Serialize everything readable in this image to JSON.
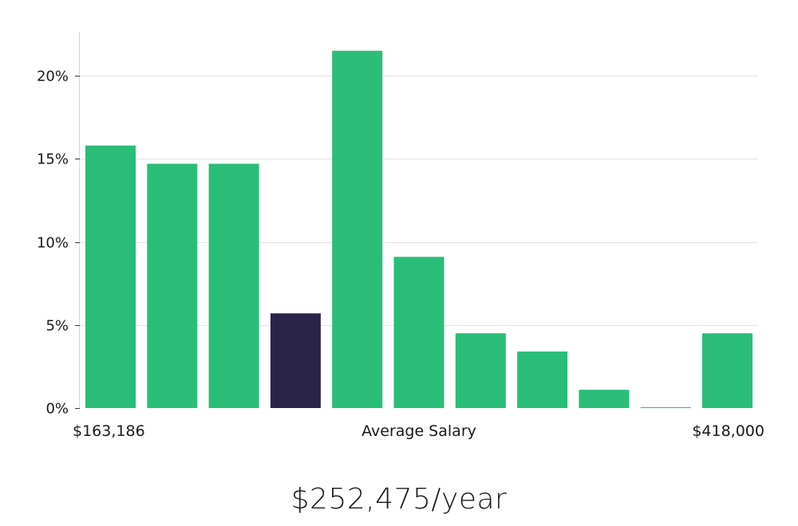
{
  "chart_data": {
    "type": "bar",
    "title": "",
    "xlabel": "Average Salary",
    "ylabel": "",
    "ylim": [
      0,
      22.5
    ],
    "y_ticks": [
      0,
      5,
      10,
      15,
      20
    ],
    "y_tick_labels": [
      "0%",
      "5%",
      "10%",
      "15%",
      "20%"
    ],
    "grid": true,
    "x_range_labels": {
      "min": "$163,186",
      "max": "$418,000"
    },
    "values": [
      15.8,
      14.7,
      14.7,
      5.7,
      21.5,
      9.1,
      4.5,
      3.4,
      1.1,
      0.05,
      4.5
    ],
    "highlight_index": 3,
    "colors": {
      "bar": "#2abd78",
      "highlight": "#2a2548",
      "grid": "#e2e2e2",
      "axis": "#d8d8d8"
    }
  },
  "footer": {
    "average_salary": "$252,475/year"
  }
}
